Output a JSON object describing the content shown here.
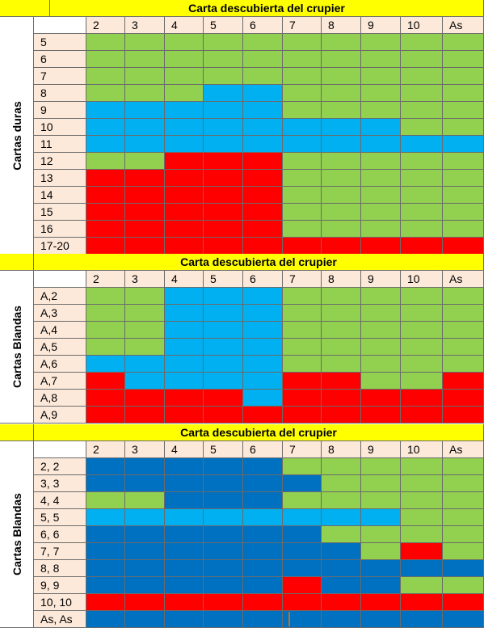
{
  "colors": {
    "H": "#92d050",
    "P": "#00b0f0",
    "S": "#ff0000",
    "D": "#0070c0",
    "header": "#ffff00",
    "label_bg": "#fde9d9"
  },
  "legend_codes": {
    "H": "green",
    "P": "light-blue",
    "S": "red",
    "D": "dark-blue"
  },
  "dealer_cards": [
    "2",
    "3",
    "4",
    "5",
    "6",
    "7",
    "8",
    "9",
    "10",
    "As"
  ],
  "sections": [
    {
      "header": "Carta descubierta del crupier",
      "side_label": "Cartas duras",
      "rows": [
        {
          "label": "5",
          "cells": [
            "H",
            "H",
            "H",
            "H",
            "H",
            "H",
            "H",
            "H",
            "H",
            "H"
          ]
        },
        {
          "label": "6",
          "cells": [
            "H",
            "H",
            "H",
            "H",
            "H",
            "H",
            "H",
            "H",
            "H",
            "H"
          ]
        },
        {
          "label": "7",
          "cells": [
            "H",
            "H",
            "H",
            "H",
            "H",
            "H",
            "H",
            "H",
            "H",
            "H"
          ]
        },
        {
          "label": "8",
          "cells": [
            "H",
            "H",
            "H",
            "P",
            "P",
            "H",
            "H",
            "H",
            "H",
            "H"
          ]
        },
        {
          "label": "9",
          "cells": [
            "P",
            "P",
            "P",
            "P",
            "P",
            "H",
            "H",
            "H",
            "H",
            "H"
          ]
        },
        {
          "label": "10",
          "cells": [
            "P",
            "P",
            "P",
            "P",
            "P",
            "P",
            "P",
            "P",
            "H",
            "H"
          ]
        },
        {
          "label": "11",
          "cells": [
            "P",
            "P",
            "P",
            "P",
            "P",
            "P",
            "P",
            "P",
            "P",
            "P"
          ]
        },
        {
          "label": "12",
          "cells": [
            "H",
            "H",
            "S",
            "S",
            "S",
            "H",
            "H",
            "H",
            "H",
            "H"
          ]
        },
        {
          "label": "13",
          "cells": [
            "S",
            "S",
            "S",
            "S",
            "S",
            "H",
            "H",
            "H",
            "H",
            "H"
          ]
        },
        {
          "label": "14",
          "cells": [
            "S",
            "S",
            "S",
            "S",
            "S",
            "H",
            "H",
            "H",
            "H",
            "H"
          ]
        },
        {
          "label": "15",
          "cells": [
            "S",
            "S",
            "S",
            "S",
            "S",
            "H",
            "H",
            "H",
            "H",
            "H"
          ]
        },
        {
          "label": "16",
          "cells": [
            "S",
            "S",
            "S",
            "S",
            "S",
            "H",
            "H",
            "H",
            "H",
            "H"
          ]
        },
        {
          "label": "17-20",
          "cells": [
            "S",
            "S",
            "S",
            "S",
            "S",
            "S",
            "S",
            "S",
            "S",
            "S"
          ]
        }
      ]
    },
    {
      "header": "Carta descubierta del crupier",
      "side_label": "Cartas Blandas",
      "rows": [
        {
          "label": "A,2",
          "cells": [
            "H",
            "H",
            "P",
            "P",
            "P",
            "H",
            "H",
            "H",
            "H",
            "H"
          ]
        },
        {
          "label": "A,3",
          "cells": [
            "H",
            "H",
            "P",
            "P",
            "P",
            "H",
            "H",
            "H",
            "H",
            "H"
          ]
        },
        {
          "label": "A,4",
          "cells": [
            "H",
            "H",
            "P",
            "P",
            "P",
            "H",
            "H",
            "H",
            "H",
            "H"
          ]
        },
        {
          "label": "A,5",
          "cells": [
            "H",
            "H",
            "P",
            "P",
            "P",
            "H",
            "H",
            "H",
            "H",
            "H"
          ]
        },
        {
          "label": "A,6",
          "cells": [
            "P",
            "P",
            "P",
            "P",
            "P",
            "H",
            "H",
            "H",
            "H",
            "H"
          ]
        },
        {
          "label": "A,7",
          "cells": [
            "S",
            "P",
            "P",
            "P",
            "P",
            "S",
            "S",
            "H",
            "H",
            "S"
          ]
        },
        {
          "label": "A,8",
          "cells": [
            "S",
            "S",
            "S",
            "S",
            "P",
            "S",
            "S",
            "S",
            "S",
            "S"
          ]
        },
        {
          "label": "A,9",
          "cells": [
            "S",
            "S",
            "S",
            "S",
            "S",
            "S",
            "S",
            "S",
            "S",
            "S"
          ]
        }
      ]
    },
    {
      "header": "Carta descubierta del crupier",
      "side_label": "Cartas Blandas",
      "rows": [
        {
          "label": "2, 2",
          "cells": [
            "D",
            "D",
            "D",
            "D",
            "D",
            "H",
            "H",
            "H",
            "H",
            "H"
          ]
        },
        {
          "label": "3, 3",
          "cells": [
            "D",
            "D",
            "D",
            "D",
            "D",
            "D",
            "H",
            "H",
            "H",
            "H"
          ]
        },
        {
          "label": "4, 4",
          "cells": [
            "H",
            "H",
            "D",
            "D",
            "D",
            "H",
            "H",
            "H",
            "H",
            "H"
          ]
        },
        {
          "label": "5, 5",
          "cells": [
            "P",
            "P",
            "P",
            "P",
            "P",
            "P",
            "P",
            "P",
            "H",
            "H"
          ]
        },
        {
          "label": "6, 6",
          "cells": [
            "D",
            "D",
            "D",
            "D",
            "D",
            "D",
            "H",
            "H",
            "H",
            "H"
          ]
        },
        {
          "label": "7, 7",
          "cells": [
            "D",
            "D",
            "D",
            "D",
            "D",
            "D",
            "D",
            "H",
            "S",
            "H"
          ]
        },
        {
          "label": "8, 8",
          "cells": [
            "D",
            "D",
            "D",
            "D",
            "D",
            "D",
            "D",
            "D",
            "D",
            "D"
          ]
        },
        {
          "label": "9, 9",
          "cells": [
            "D",
            "D",
            "D",
            "D",
            "D",
            "S",
            "D",
            "D",
            "H",
            "H"
          ]
        },
        {
          "label": "10, 10",
          "cells": [
            "S",
            "S",
            "S",
            "S",
            "S",
            "S",
            "S",
            "S",
            "S",
            "S"
          ]
        },
        {
          "label": "As, As",
          "cells": [
            "D",
            "D",
            "D",
            "D",
            "D",
            "D",
            "D",
            "D",
            "D",
            "D"
          ]
        }
      ]
    }
  ]
}
